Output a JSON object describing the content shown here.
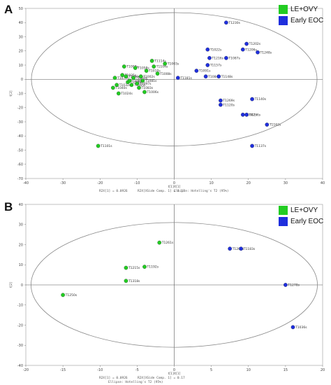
{
  "chart_data": [
    {
      "panel": "A",
      "type": "scatter",
      "xlabel": "t[1]/t[1]",
      "ylabel": "t[2]",
      "xlim": [
        -40,
        40
      ],
      "ylim": [
        -70,
        50
      ],
      "x_ticks": [
        -40,
        -30,
        -20,
        -10,
        0,
        10,
        20,
        30,
        40
      ],
      "y_ticks": [
        -70,
        -60,
        -50,
        -40,
        -30,
        -20,
        -10,
        0,
        10,
        20,
        30,
        40,
        50
      ],
      "ellipse": {
        "cx": 0,
        "cy": 0,
        "rx": 38.5,
        "ry": 47
      },
      "footnote": [
        "R2X[1] = 0.0926",
        "R2X[XSide Comp. 1] = 0.17",
        "Ellipse: Hotelling's T2 (95%)"
      ],
      "legend": [
        {
          "name": "LE+OVY",
          "color": "#22cc22"
        },
        {
          "name": "Early EOC",
          "color": "#1f2fdd"
        }
      ],
      "series": [
        {
          "name": "LE+OVY",
          "color": "#22cc22",
          "points": [
            {
              "x": -20.5,
              "y": -47,
              "label": "T1101s"
            },
            {
              "x": -16,
              "y": 1,
              "label": "T1077s"
            },
            {
              "x": -15.5,
              "y": -4,
              "label": "T1032s"
            },
            {
              "x": -16.5,
              "y": -6,
              "label": "T1040s"
            },
            {
              "x": -15,
              "y": -10,
              "label": "T1024s"
            },
            {
              "x": -14,
              "y": 3,
              "label": "T1035s"
            },
            {
              "x": -13.5,
              "y": 9,
              "label": "T1007s"
            },
            {
              "x": -13,
              "y": 2,
              "label": "T1099s"
            },
            {
              "x": -12.5,
              "y": -2,
              "label": "T1066s"
            },
            {
              "x": -12,
              "y": -1,
              "label": "T1088s"
            },
            {
              "x": -11.5,
              "y": -4,
              "label": "T1065s"
            },
            {
              "x": -11,
              "y": 1,
              "label": "T1060s"
            },
            {
              "x": -10.5,
              "y": 8,
              "label": "T1058s"
            },
            {
              "x": -10,
              "y": -3,
              "label": "T1097s"
            },
            {
              "x": -9.5,
              "y": -6,
              "label": "T1083s"
            },
            {
              "x": -9,
              "y": 2,
              "label": "T1002s"
            },
            {
              "x": -8.5,
              "y": -1,
              "label": "T1081s"
            },
            {
              "x": -8,
              "y": -9,
              "label": "T1006s"
            },
            {
              "x": -7.5,
              "y": 6,
              "label": "T1010s"
            },
            {
              "x": -6,
              "y": 13,
              "label": "T1114s"
            },
            {
              "x": -5.5,
              "y": 9,
              "label": "T1104s"
            },
            {
              "x": -4.5,
              "y": 4,
              "label": "T1008s"
            },
            {
              "x": -2.5,
              "y": 11,
              "label": "T1003s"
            }
          ]
        },
        {
          "name": "Early EOC",
          "color": "#1f2fdd",
          "points": [
            {
              "x": 14,
              "y": 40,
              "label": "T1230s"
            },
            {
              "x": 19.5,
              "y": 25,
              "label": "T1202s"
            },
            {
              "x": 18.5,
              "y": 21,
              "label": "T1206s"
            },
            {
              "x": 22.5,
              "y": 19,
              "label": "T1248s"
            },
            {
              "x": 9,
              "y": 21,
              "label": "T1022s"
            },
            {
              "x": 9.5,
              "y": 15,
              "label": "T1216s"
            },
            {
              "x": 14,
              "y": 15,
              "label": "T1087s"
            },
            {
              "x": 9,
              "y": 10,
              "label": "T1157s"
            },
            {
              "x": 6,
              "y": 6,
              "label": "T1091s"
            },
            {
              "x": 1,
              "y": 1,
              "label": "T1181s"
            },
            {
              "x": 8.5,
              "y": 2,
              "label": "T1084s"
            },
            {
              "x": 12,
              "y": 2,
              "label": "T1148s"
            },
            {
              "x": 21,
              "y": -14,
              "label": "T1140s"
            },
            {
              "x": 12.5,
              "y": -15,
              "label": "T1269s"
            },
            {
              "x": 12.5,
              "y": -18,
              "label": "T1120s"
            },
            {
              "x": 18.5,
              "y": -25,
              "label": "T1042s"
            },
            {
              "x": 19.5,
              "y": -25,
              "label": "T1236s"
            },
            {
              "x": 25,
              "y": -32,
              "label": "T1162s"
            },
            {
              "x": 21,
              "y": -47,
              "label": "T1137s"
            }
          ]
        }
      ]
    },
    {
      "panel": "B",
      "type": "scatter",
      "xlabel": "t[1]/t[1]",
      "ylabel": "t[2]",
      "xlim": [
        -20,
        20
      ],
      "ylim": [
        -40,
        40
      ],
      "x_ticks": [
        -20,
        -15,
        -10,
        -5,
        0,
        5,
        10,
        15,
        20
      ],
      "y_ticks": [
        -40,
        -30,
        -20,
        -10,
        0,
        10,
        20,
        30,
        40
      ],
      "ellipse": {
        "cx": 0,
        "cy": 0,
        "rx": 19.3,
        "ry": 31
      },
      "footnote": [
        "R2X[1] = 0.0926",
        "R2X[XSide Comp. 1] = 0.17",
        "Ellipse: Hotelling's T2 (95%)"
      ],
      "legend": [
        {
          "name": "LE+OVY",
          "color": "#22cc22"
        },
        {
          "name": "Early EOC",
          "color": "#1f2fdd"
        }
      ],
      "series": [
        {
          "name": "LE+OVY",
          "color": "#22cc22",
          "points": [
            {
              "x": -2,
              "y": 21,
              "label": "T1261s"
            },
            {
              "x": -4,
              "y": 9,
              "label": "T1192s"
            },
            {
              "x": -6.5,
              "y": 8.5,
              "label": "T1215s"
            },
            {
              "x": -6.5,
              "y": 2,
              "label": "T1318s"
            },
            {
              "x": -15,
              "y": -5,
              "label": "T1250s"
            }
          ]
        },
        {
          "name": "Early EOC",
          "color": "#1f2fdd",
          "points": [
            {
              "x": 7.5,
              "y": 18,
              "label": "T1200s"
            },
            {
              "x": 9,
              "y": 18,
              "label": "T1183s"
            },
            {
              "x": 15,
              "y": 0,
              "label": "T1278s"
            },
            {
              "x": 16,
              "y": -21,
              "label": "T1036s"
            }
          ]
        }
      ]
    }
  ]
}
